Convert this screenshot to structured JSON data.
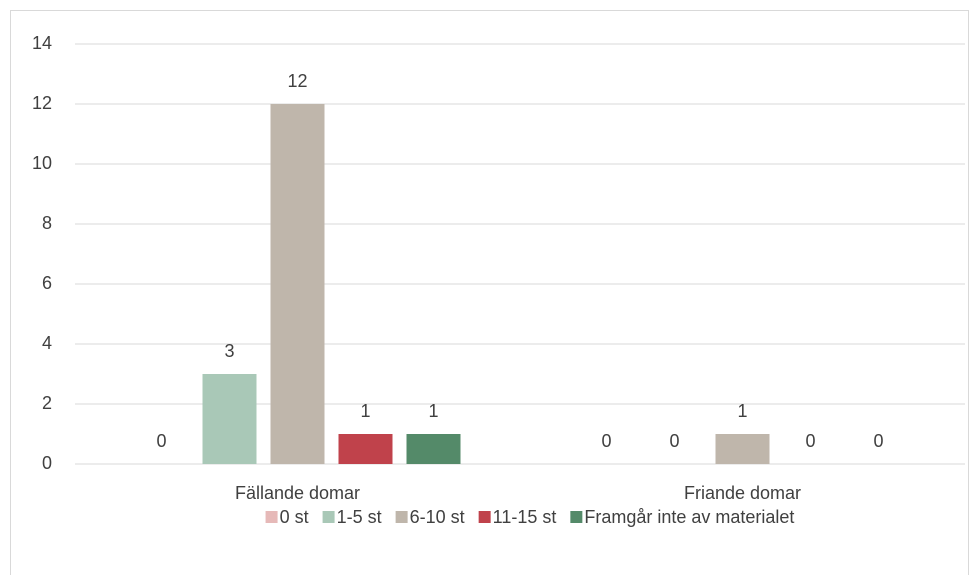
{
  "chart_data": {
    "type": "bar",
    "categories": [
      "Fällande domar",
      "Friande domar"
    ],
    "series": [
      {
        "name": "0 st",
        "color": "#e6b9b8",
        "values": [
          0,
          0
        ]
      },
      {
        "name": "1-5 st",
        "color": "#a9c8b7",
        "values": [
          3,
          0
        ]
      },
      {
        "name": "6-10 st",
        "color": "#bfb6ab",
        "values": [
          12,
          1
        ]
      },
      {
        "name": "11-15 st",
        "color": "#c0424b",
        "values": [
          1,
          0
        ]
      },
      {
        "name": "Framgår inte av materialet",
        "color": "#548a69",
        "values": [
          1,
          0
        ]
      }
    ],
    "ylim": [
      0,
      14
    ],
    "yticks": [
      0,
      2,
      4,
      6,
      8,
      10,
      12,
      14
    ],
    "grid": true,
    "legend": "bottom"
  }
}
